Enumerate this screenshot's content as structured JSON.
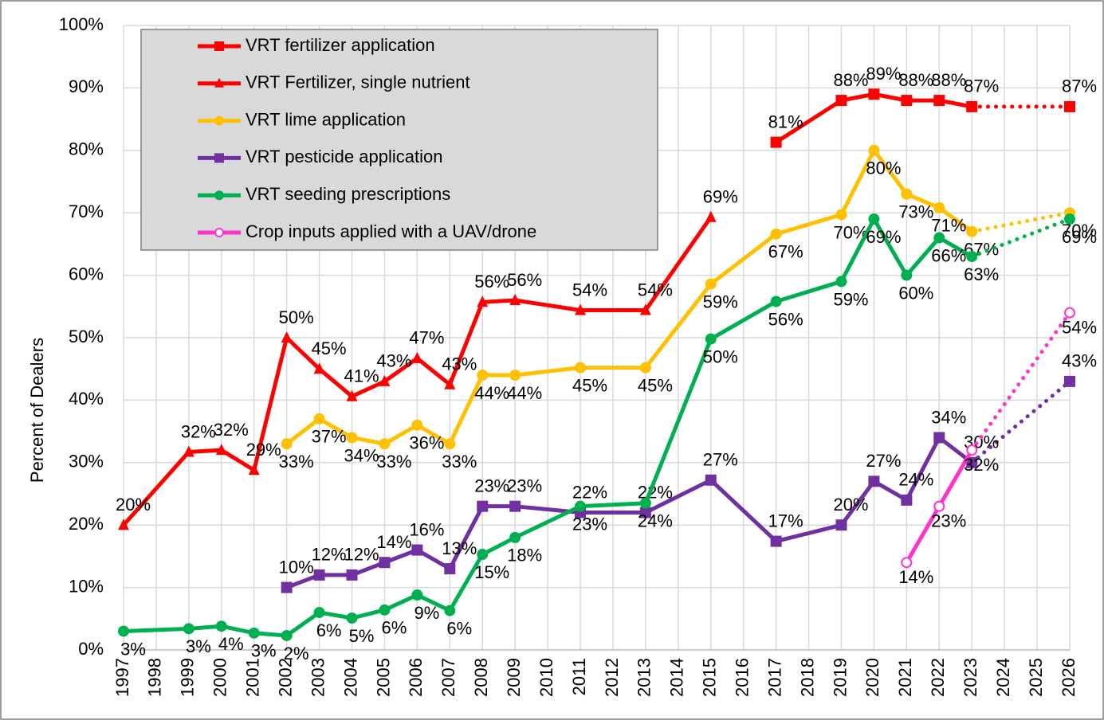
{
  "chart_data": {
    "type": "line",
    "y_label": "Percent of Dealers",
    "xlim": [
      1997,
      2026
    ],
    "xticks": [
      1997,
      1998,
      1999,
      2000,
      2001,
      2002,
      2003,
      2004,
      2005,
      2006,
      2007,
      2008,
      2009,
      2010,
      2011,
      2012,
      2013,
      2014,
      2015,
      2016,
      2017,
      2018,
      2019,
      2020,
      2021,
      2022,
      2023,
      2024,
      2025,
      2026
    ],
    "ylim": [
      0,
      100
    ],
    "yticks": [
      {
        "value": 0,
        "label": "0%"
      },
      {
        "value": 10,
        "label": "10%"
      },
      {
        "value": 20,
        "label": "20%"
      },
      {
        "value": 30,
        "label": "30%"
      },
      {
        "value": 40,
        "label": "40%"
      },
      {
        "value": 50,
        "label": "50%"
      },
      {
        "value": 60,
        "label": "60%"
      },
      {
        "value": 70,
        "label": "70%"
      },
      {
        "value": 80,
        "label": "80%"
      },
      {
        "value": 90,
        "label": "90%"
      },
      {
        "value": 100,
        "label": "100%"
      }
    ],
    "grid": true,
    "legend": "upper left",
    "forecast": {
      "from": 2023,
      "style": "dotted"
    },
    "series": [
      {
        "name": "VRT fertilizer application",
        "color": "#ff0000",
        "marker": "square",
        "x": [
          2017,
          2019,
          2020,
          2021,
          2022,
          2023,
          2026
        ],
        "values": [
          81.3,
          88,
          89,
          88,
          88,
          87,
          87
        ],
        "value_labels": [
          "81%",
          "88%",
          "89%",
          "88%",
          "88%",
          "87%",
          "87%"
        ]
      },
      {
        "name": "VRT Fertilizer, single nutrient",
        "color": "#ff0000",
        "marker": "triangle",
        "x": [
          1997,
          1999,
          2000,
          2001,
          2002,
          2003,
          2004,
          2005,
          2006,
          2007,
          2008,
          2009,
          2011,
          2013,
          2015
        ],
        "values": [
          20,
          31.7,
          32,
          28.8,
          50,
          45,
          40.6,
          43,
          46.7,
          42.5,
          55.7,
          56,
          54.4,
          54.4,
          69.3
        ],
        "value_labels": [
          "20%",
          "32%",
          "32%",
          "29%",
          "50%",
          "45%",
          "41%",
          "43%",
          "47%",
          "43%",
          "56%",
          "56%",
          "54%",
          "54%",
          "69%"
        ]
      },
      {
        "name": "VRT lime application",
        "color": "#ffc000",
        "marker": "circle",
        "x": [
          2002,
          2003,
          2004,
          2005,
          2006,
          2007,
          2008,
          2009,
          2011,
          2013,
          2015,
          2017,
          2019,
          2020,
          2021,
          2022,
          2023,
          2026
        ],
        "values": [
          33,
          37,
          34,
          33,
          36,
          33,
          44,
          44,
          45.2,
          45.2,
          58.6,
          66.6,
          69.7,
          80,
          73,
          70.8,
          67,
          70
        ],
        "value_labels": [
          "33%",
          "37%",
          "34%",
          "33%",
          "36%",
          "33%",
          "44%",
          "44%",
          "45%",
          "45%",
          "59%",
          "67%",
          "70%",
          "80%",
          "73%",
          "71%",
          "67%",
          "70%"
        ]
      },
      {
        "name": "VRT pesticide application",
        "color": "#7030a0",
        "marker": "square",
        "x": [
          2002,
          2003,
          2004,
          2005,
          2006,
          2007,
          2008,
          2009,
          2011,
          2013,
          2015,
          2017,
          2019,
          2020,
          2021,
          2022,
          2023,
          2026
        ],
        "values": [
          10,
          12,
          12,
          14,
          16,
          13,
          23,
          23,
          22,
          22,
          27.2,
          17.4,
          20,
          27,
          24,
          34,
          30,
          43
        ],
        "value_labels": [
          "10%",
          "12%",
          "12%",
          "14%",
          "16%",
          "13%",
          "23%",
          "23%",
          "22%",
          "22%",
          "27%",
          "17%",
          "20%",
          "27%",
          "24%",
          "34%",
          "30%",
          "43%"
        ]
      },
      {
        "name": "VRT seeding prescriptions",
        "color": "#00b050",
        "marker": "circle",
        "x": [
          1997,
          1999,
          2000,
          2001,
          2002,
          2003,
          2004,
          2005,
          2006,
          2007,
          2008,
          2009,
          2011,
          2013,
          2015,
          2017,
          2019,
          2020,
          2021,
          2022,
          2023,
          2026
        ],
        "values": [
          3,
          3.4,
          3.8,
          2.7,
          2.3,
          6,
          5.1,
          6.4,
          8.8,
          6.3,
          15.3,
          18,
          23,
          23.5,
          49.8,
          55.8,
          59,
          69,
          60,
          66,
          63,
          69
        ],
        "value_labels": [
          "3%",
          "3%",
          "4%",
          "3%",
          "2%",
          "6%",
          "5%",
          "6%",
          "9%",
          "6%",
          "15%",
          "18%",
          "23%",
          "24%",
          "50%",
          "56%",
          "59%",
          "69%",
          "60%",
          "66%",
          "63%",
          "69%"
        ]
      },
      {
        "name": "Crop inputs applied with a UAV/drone",
        "color": "#ff33cc",
        "marker": "open-circle",
        "x": [
          2021,
          2022,
          2023,
          2026
        ],
        "values": [
          14,
          23,
          32,
          54
        ],
        "value_labels": [
          "14%",
          "23%",
          "32%",
          "54%"
        ]
      }
    ]
  }
}
